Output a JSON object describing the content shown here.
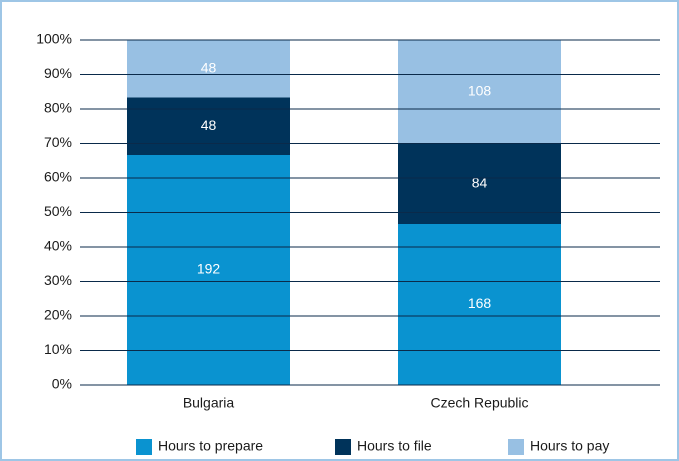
{
  "chart_data": {
    "type": "bar",
    "stacked": true,
    "normalize": true,
    "categories": [
      "Bulgaria",
      "Czech Republic"
    ],
    "series": [
      {
        "name": "Hours to prepare",
        "color": "#0a93d0",
        "values": [
          192,
          168
        ]
      },
      {
        "name": "Hours to file",
        "color": "#00335a",
        "values": [
          48,
          84
        ]
      },
      {
        "name": "Hours to pay",
        "color": "#98c0e3",
        "values": [
          48,
          108
        ]
      }
    ],
    "ylim": [
      0,
      100
    ],
    "yticks": [
      {
        "value": 0,
        "label": "0%"
      },
      {
        "value": 10,
        "label": "10%"
      },
      {
        "value": 20,
        "label": "20%"
      },
      {
        "value": 30,
        "label": "30%"
      },
      {
        "value": 40,
        "label": "40%"
      },
      {
        "value": 50,
        "label": "50%"
      },
      {
        "value": 60,
        "label": "60%"
      },
      {
        "value": 70,
        "label": "70%"
      },
      {
        "value": 80,
        "label": "80%"
      },
      {
        "value": 90,
        "label": "90%"
      },
      {
        "value": 100,
        "label": "100%"
      }
    ],
    "grid": true,
    "legend": "bottom"
  }
}
